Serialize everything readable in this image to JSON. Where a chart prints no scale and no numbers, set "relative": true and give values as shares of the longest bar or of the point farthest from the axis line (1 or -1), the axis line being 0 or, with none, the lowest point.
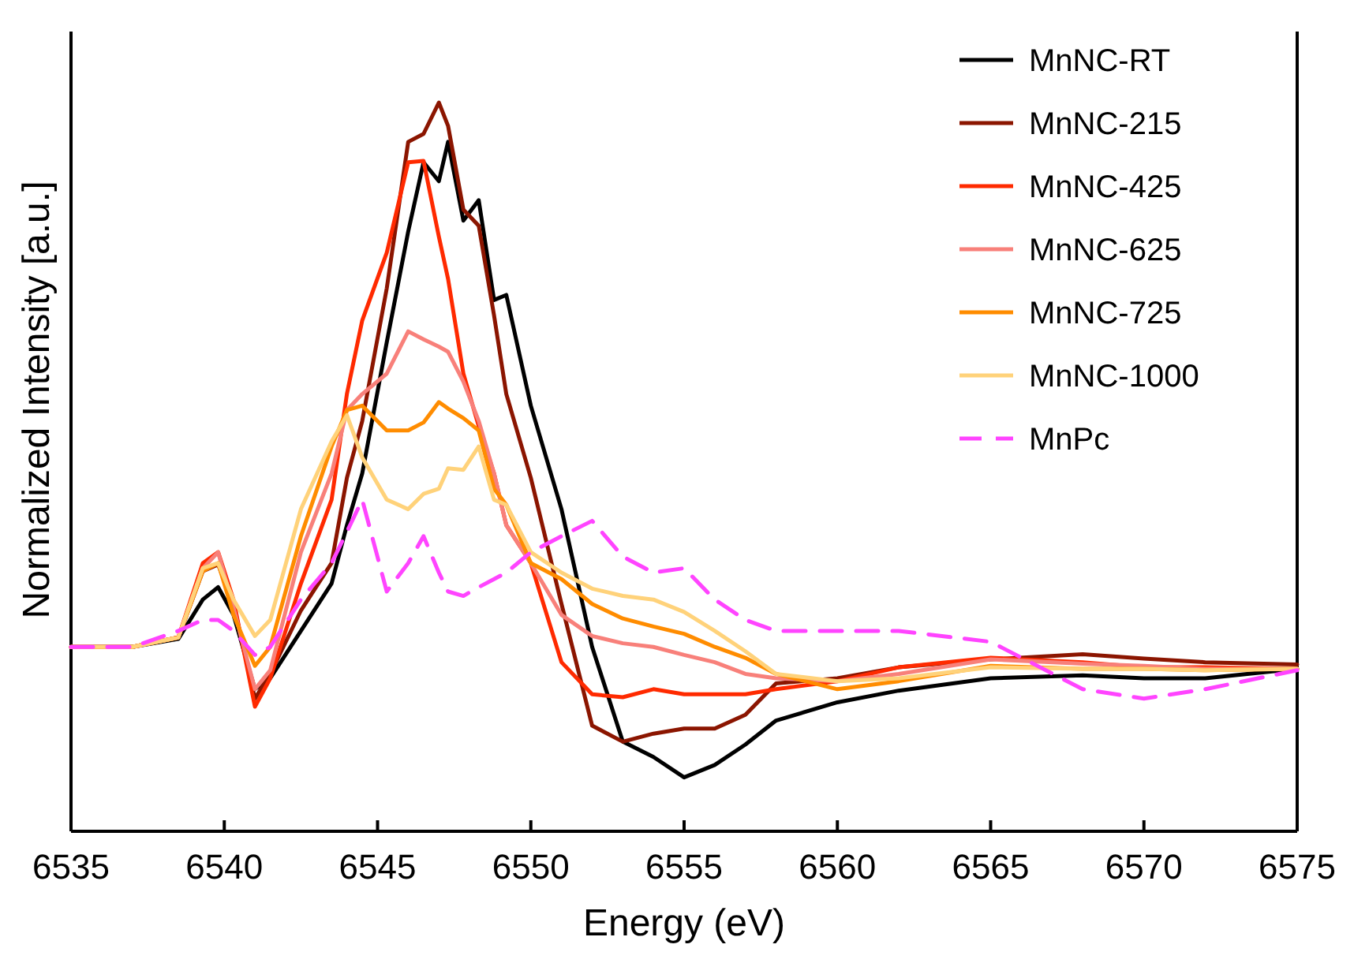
{
  "chart_data": {
    "type": "line",
    "relative": true,
    "xlabel": "Energy (eV)",
    "ylabel": "Normalized Intensity [a.u.]",
    "legend": "top right",
    "grid": false,
    "xlim": [
      6535,
      6575
    ],
    "xticks": [
      6535,
      6540,
      6545,
      6550,
      6555,
      6560,
      6565,
      6570,
      6575
    ],
    "x": [
      6535,
      6537,
      6538.5,
      6539.3,
      6539.8,
      6540.3,
      6541,
      6541.5,
      6542.5,
      6543.5,
      6544,
      6544.5,
      6545.3,
      6546,
      6546.5,
      6547,
      6547.3,
      6547.8,
      6548.3,
      6548.8,
      6549.2,
      6550,
      6551,
      6552,
      6553,
      6554,
      6555,
      6556,
      6557,
      6558,
      6560,
      6562,
      6565,
      6568,
      6570,
      6572,
      6575
    ],
    "series": [
      {
        "name": "MnNC-RT",
        "color": "#000000",
        "line_style": "solid",
        "values": [
          0.253,
          0.253,
          0.264,
          0.318,
          0.335,
          0.297,
          0.195,
          0.21,
          0.275,
          0.34,
          0.42,
          0.491,
          0.671,
          0.823,
          0.918,
          0.892,
          0.946,
          0.838,
          0.866,
          0.729,
          0.736,
          0.584,
          0.442,
          0.253,
          0.123,
          0.102,
          0.074,
          0.091,
          0.119,
          0.152,
          0.177,
          0.193,
          0.21,
          0.214,
          0.21,
          0.21,
          0.223
        ]
      },
      {
        "name": "MnNC-215",
        "color": "#8b1500",
        "line_style": "solid",
        "values": [
          0.253,
          0.253,
          0.266,
          0.357,
          0.366,
          0.312,
          0.182,
          0.216,
          0.303,
          0.368,
          0.485,
          0.563,
          0.745,
          0.946,
          0.957,
          1.0,
          0.968,
          0.853,
          0.831,
          0.708,
          0.6,
          0.485,
          0.312,
          0.145,
          0.123,
          0.134,
          0.141,
          0.141,
          0.16,
          0.203,
          0.21,
          0.225,
          0.236,
          0.243,
          0.237,
          0.232,
          0.229
        ]
      },
      {
        "name": "MnNC-425",
        "color": "#ff2a00",
        "line_style": "solid",
        "values": [
          0.253,
          0.253,
          0.266,
          0.368,
          0.383,
          0.318,
          0.171,
          0.21,
          0.34,
          0.455,
          0.6,
          0.701,
          0.794,
          0.918,
          0.92,
          0.816,
          0.758,
          0.628,
          0.556,
          0.491,
          0.42,
          0.368,
          0.232,
          0.188,
          0.184,
          0.195,
          0.188,
          0.188,
          0.188,
          0.195,
          0.206,
          0.225,
          0.238,
          0.232,
          0.225,
          0.225,
          0.223
        ]
      },
      {
        "name": "MnNC-625",
        "color": "#f8807a",
        "line_style": "solid",
        "values": [
          0.253,
          0.253,
          0.266,
          0.361,
          0.383,
          0.307,
          0.195,
          0.221,
          0.383,
          0.491,
          0.578,
          0.6,
          0.628,
          0.686,
          0.675,
          0.665,
          0.658,
          0.617,
          0.563,
          0.491,
          0.42,
          0.368,
          0.297,
          0.268,
          0.258,
          0.253,
          0.242,
          0.232,
          0.216,
          0.21,
          0.206,
          0.216,
          0.236,
          0.23,
          0.227,
          0.223,
          0.223
        ]
      },
      {
        "name": "MnNC-725",
        "color": "#ff8c00",
        "line_style": "solid",
        "values": [
          0.253,
          0.253,
          0.266,
          0.357,
          0.368,
          0.297,
          0.227,
          0.253,
          0.405,
          0.528,
          0.578,
          0.584,
          0.55,
          0.55,
          0.561,
          0.589,
          0.58,
          0.567,
          0.55,
          0.47,
          0.448,
          0.368,
          0.346,
          0.312,
          0.292,
          0.281,
          0.271,
          0.253,
          0.238,
          0.216,
          0.195,
          0.206,
          0.227,
          0.223,
          0.223,
          0.221,
          0.223
        ]
      },
      {
        "name": "MnNC-1000",
        "color": "#ffd27a",
        "line_style": "solid",
        "values": [
          0.253,
          0.253,
          0.266,
          0.361,
          0.368,
          0.318,
          0.268,
          0.29,
          0.442,
          0.535,
          0.571,
          0.513,
          0.455,
          0.442,
          0.463,
          0.47,
          0.498,
          0.496,
          0.528,
          0.455,
          0.448,
          0.383,
          0.355,
          0.333,
          0.323,
          0.318,
          0.301,
          0.275,
          0.247,
          0.216,
          0.206,
          0.21,
          0.225,
          0.223,
          0.223,
          0.221,
          0.223
        ]
      },
      {
        "name": "MnPc",
        "color": "#ff44ff",
        "line_style": "dashed",
        "values": [
          0.253,
          0.253,
          0.275,
          0.29,
          0.29,
          0.275,
          0.242,
          0.253,
          0.318,
          0.368,
          0.411,
          0.455,
          0.329,
          0.368,
          0.405,
          0.355,
          0.329,
          0.323,
          0.335,
          0.346,
          0.355,
          0.383,
          0.405,
          0.426,
          0.377,
          0.355,
          0.361,
          0.318,
          0.29,
          0.275,
          0.275,
          0.275,
          0.26,
          0.195,
          0.182,
          0.195,
          0.221
        ]
      }
    ]
  }
}
